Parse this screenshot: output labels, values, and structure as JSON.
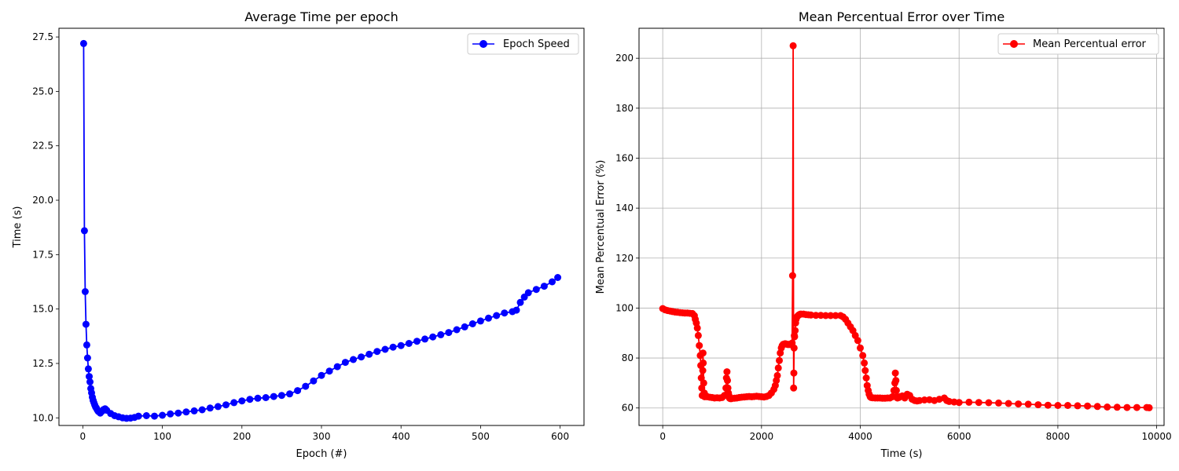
{
  "chart_data": [
    {
      "type": "line",
      "title": "Average Time per epoch",
      "xlabel": "Epoch (#)",
      "ylabel": "Time (s)",
      "xlim": [
        -30,
        630
      ],
      "ylim": [
        9.65,
        27.9
      ],
      "xticks": [
        0,
        100,
        200,
        300,
        400,
        500,
        600
      ],
      "yticks": [
        10.0,
        12.5,
        15.0,
        17.5,
        20.0,
        22.5,
        25.0,
        27.5
      ],
      "ytick_labels": [
        "10.0",
        "12.5",
        "15.0",
        "17.5",
        "20.0",
        "22.5",
        "25.0",
        "27.5"
      ],
      "grid": false,
      "legend": "top-right",
      "color": "#0000ff",
      "series": [
        {
          "name": "Epoch Speed",
          "x": [
            1,
            2,
            3,
            4,
            5,
            6,
            7,
            8,
            9,
            10,
            11,
            12,
            13,
            14,
            15,
            16,
            17,
            18,
            19,
            20,
            22,
            24,
            26,
            28,
            30,
            35,
            40,
            45,
            50,
            55,
            60,
            65,
            70,
            80,
            90,
            100,
            110,
            120,
            130,
            140,
            150,
            160,
            170,
            180,
            190,
            200,
            210,
            220,
            230,
            240,
            250,
            260,
            270,
            280,
            290,
            300,
            310,
            320,
            330,
            340,
            350,
            360,
            370,
            380,
            390,
            400,
            410,
            420,
            430,
            440,
            450,
            460,
            470,
            480,
            490,
            500,
            510,
            520,
            530,
            540,
            545,
            550,
            555,
            560,
            570,
            580,
            590,
            597
          ],
          "y": [
            27.2,
            18.6,
            15.8,
            14.3,
            13.35,
            12.75,
            12.25,
            11.9,
            11.65,
            11.35,
            11.15,
            10.95,
            10.8,
            10.7,
            10.6,
            10.5,
            10.45,
            10.38,
            10.32,
            10.28,
            10.22,
            10.3,
            10.38,
            10.42,
            10.35,
            10.2,
            10.1,
            10.05,
            10.0,
            9.98,
            9.99,
            10.02,
            10.08,
            10.1,
            10.08,
            10.12,
            10.18,
            10.22,
            10.27,
            10.32,
            10.37,
            10.45,
            10.52,
            10.6,
            10.7,
            10.78,
            10.85,
            10.9,
            10.93,
            10.98,
            11.03,
            11.1,
            11.25,
            11.45,
            11.7,
            11.95,
            12.15,
            12.35,
            12.55,
            12.68,
            12.8,
            12.92,
            13.05,
            13.15,
            13.25,
            13.32,
            13.42,
            13.52,
            13.62,
            13.72,
            13.82,
            13.92,
            14.05,
            14.18,
            14.32,
            14.45,
            14.58,
            14.7,
            14.82,
            14.88,
            14.95,
            15.3,
            15.55,
            15.75,
            15.9,
            16.05,
            16.25,
            16.45
          ]
        }
      ]
    },
    {
      "type": "line",
      "title": "Mean Percentual Error over Time",
      "xlabel": "Time (s)",
      "ylabel": "Mean Percentual Error (%)",
      "xlim": [
        -480,
        10150
      ],
      "ylim": [
        53,
        212
      ],
      "xticks": [
        0,
        2000,
        4000,
        6000,
        8000,
        10000
      ],
      "yticks": [
        60,
        80,
        100,
        120,
        140,
        160,
        180,
        200
      ],
      "ytick_labels": [
        "60",
        "80",
        "100",
        "120",
        "140",
        "160",
        "180",
        "200"
      ],
      "grid": true,
      "legend": "top-right",
      "color": "#ff0000",
      "series": [
        {
          "name": "Mean Percentual error",
          "x": [
            0,
            50,
            100,
            150,
            200,
            250,
            300,
            350,
            400,
            450,
            500,
            550,
            600,
            640,
            660,
            680,
            700,
            720,
            740,
            760,
            770,
            780,
            790,
            800,
            810,
            815,
            820,
            830,
            840,
            850,
            860,
            880,
            900,
            950,
            1000,
            1050,
            1100,
            1150,
            1200,
            1250,
            1280,
            1290,
            1300,
            1310,
            1320,
            1330,
            1340,
            1350,
            1360,
            1380,
            1400,
            1450,
            1500,
            1550,
            1600,
            1650,
            1700,
            1750,
            1800,
            1850,
            1900,
            1950,
            2000,
            2050,
            2100,
            2150,
            2200,
            2250,
            2280,
            2300,
            2320,
            2340,
            2360,
            2380,
            2400,
            2420,
            2440,
            2460,
            2480,
            2500,
            2520,
            2540,
            2560,
            2580,
            2600,
            2610,
            2620,
            2630,
            2640,
            2650,
            2655,
            2660,
            2665,
            2670,
            2680,
            2690,
            2700,
            2720,
            2740,
            2760,
            2780,
            2800,
            2850,
            2900,
            2950,
            3000,
            3100,
            3200,
            3300,
            3400,
            3500,
            3600,
            3650,
            3700,
            3750,
            3800,
            3850,
            3900,
            3950,
            4000,
            4050,
            4080,
            4100,
            4120,
            4140,
            4160,
            4180,
            4200,
            4220,
            4250,
            4300,
            4350,
            4400,
            4450,
            4500,
            4550,
            4600,
            4650,
            4680,
            4700,
            4710,
            4720,
            4730,
            4740,
            4750,
            4780,
            4800,
            4850,
            4900,
            4950,
            5000,
            5050,
            5100,
            5150,
            5200,
            5300,
            5400,
            5500,
            5600,
            5700,
            5750,
            5800,
            5900,
            6000,
            6200,
            6400,
            6600,
            6800,
            7000,
            7200,
            7400,
            7600,
            7800,
            8000,
            8200,
            8400,
            8600,
            8800,
            9000,
            9200,
            9400,
            9600,
            9800,
            9850
          ],
          "y": [
            99.8,
            99.3,
            99.0,
            98.8,
            98.6,
            98.4,
            98.3,
            98.2,
            98.1,
            98.0,
            98.0,
            97.9,
            97.8,
            97.0,
            95.5,
            94.0,
            92.0,
            89.0,
            85.0,
            81.0,
            77.0,
            72.0,
            68.0,
            65.0,
            75.0,
            82.0,
            78.0,
            70.0,
            66.0,
            64.5,
            65.0,
            64.8,
            64.5,
            64.3,
            64.2,
            64.0,
            64.1,
            64.0,
            64.2,
            65.0,
            68.0,
            72.0,
            74.5,
            71.0,
            68.0,
            66.0,
            65.0,
            64.0,
            63.8,
            63.7,
            63.8,
            63.9,
            64.0,
            64.2,
            64.3,
            64.4,
            64.5,
            64.6,
            64.5,
            64.6,
            64.7,
            64.6,
            64.5,
            64.4,
            64.6,
            65.0,
            66.0,
            67.5,
            69.0,
            71.0,
            73.0,
            76.0,
            79.0,
            82.0,
            84.0,
            85.0,
            85.5,
            85.6,
            85.7,
            85.6,
            85.5,
            85.4,
            85.5,
            85.4,
            85.6,
            85.8,
            86.0,
            113.0,
            205.0,
            68.0,
            74.0,
            84.0,
            89.0,
            88.5,
            91.0,
            94.0,
            95.5,
            96.5,
            97.0,
            97.3,
            97.5,
            97.6,
            97.6,
            97.4,
            97.3,
            97.2,
            97.1,
            97.1,
            97.0,
            97.0,
            97.0,
            97.0,
            96.5,
            95.5,
            94.0,
            92.5,
            91.0,
            89.0,
            87.0,
            84.0,
            81.0,
            78.0,
            75.0,
            72.0,
            69.0,
            67.0,
            65.5,
            64.5,
            64.2,
            64.1,
            64.0,
            64.0,
            64.0,
            63.9,
            63.9,
            64.0,
            64.0,
            64.5,
            67.0,
            70.0,
            74.0,
            71.0,
            67.0,
            64.5,
            64.0,
            64.2,
            64.5,
            64.8,
            64.0,
            65.5,
            65.0,
            63.5,
            63.0,
            62.8,
            63.0,
            63.2,
            63.3,
            63.0,
            63.5,
            64.0,
            63.0,
            62.6,
            62.4,
            62.2,
            62.3,
            62.2,
            62.1,
            62.0,
            61.8,
            61.6,
            61.5,
            61.3,
            61.1,
            61.0,
            61.0,
            60.9,
            60.8,
            60.6,
            60.4,
            60.3,
            60.2,
            60.2,
            60.2,
            60.1
          ]
        }
      ]
    }
  ]
}
